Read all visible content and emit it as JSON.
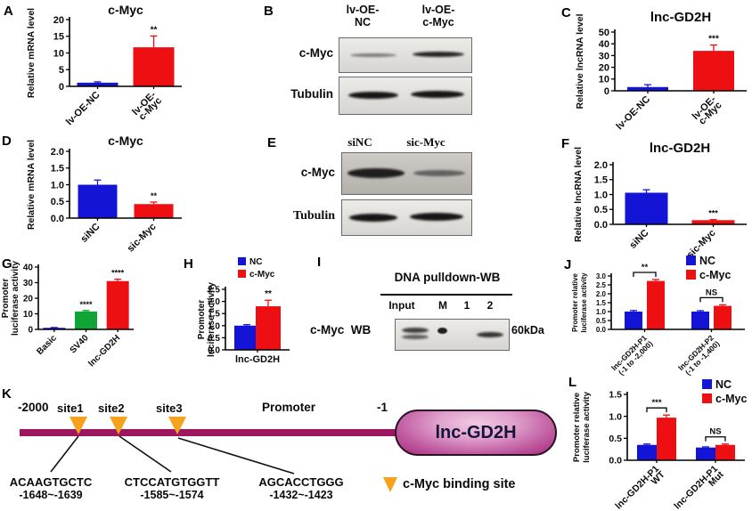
{
  "panel_labels": {
    "A": "A",
    "B": "B",
    "C": "C",
    "D": "D",
    "E": "E",
    "F": "F",
    "G": "G",
    "H": "H",
    "I": "I",
    "J": "J",
    "K": "K",
    "L": "L"
  },
  "colors": {
    "blue": "#1414d6",
    "red": "#ee0f12",
    "green": "#10a335",
    "magenta": "#9c175f",
    "orange": "#f6a21c"
  },
  "chart_data": [
    {
      "id": "A",
      "type": "bar",
      "title": "c-Myc",
      "ylabel": [
        "Relative mRNA level"
      ],
      "ylim": [
        0,
        20
      ],
      "yticks": [
        "0",
        "5",
        "10",
        "15",
        "20"
      ],
      "categories": [
        [
          "lv-OE-NC"
        ],
        [
          "lv-OE-",
          "c-Myc"
        ]
      ],
      "series": [
        {
          "colors": [
            "blue",
            "red"
          ],
          "values": [
            1.1,
            11.7
          ],
          "errors": [
            0.25,
            3.4
          ]
        }
      ],
      "sig": [
        {
          "cat": 1,
          "series": 0,
          "label": "**"
        }
      ]
    },
    {
      "id": "C",
      "type": "bar",
      "title": "lnc-GD2H",
      "ylabel": [
        "Relative lncRNA level"
      ],
      "ylim": [
        0,
        50
      ],
      "yticks": [
        "0",
        "10",
        "20",
        "30",
        "40",
        "50"
      ],
      "categories": [
        [
          "lv-OE-NC"
        ],
        [
          "lv-OE-",
          "c-Myc"
        ]
      ],
      "series": [
        {
          "colors": [
            "blue",
            "red"
          ],
          "values": [
            3.2,
            34
          ],
          "errors": [
            2,
            5
          ]
        }
      ],
      "sig": [
        {
          "cat": 1,
          "series": 0,
          "label": "***"
        }
      ]
    },
    {
      "id": "D",
      "type": "bar",
      "title": "c-Myc",
      "ylabel": [
        "Relative mRNA level"
      ],
      "ylim": [
        0,
        2
      ],
      "yticks": [
        "0.0",
        "0.5",
        "1.0",
        "1.5",
        "2.0"
      ],
      "categories": [
        [
          "siNC"
        ],
        [
          "sic-Myc"
        ]
      ],
      "series": [
        {
          "colors": [
            "blue",
            "red"
          ],
          "values": [
            1.0,
            0.42
          ],
          "errors": [
            0.14,
            0.06
          ]
        }
      ],
      "sig": [
        {
          "cat": 1,
          "series": 0,
          "label": "**"
        }
      ]
    },
    {
      "id": "F",
      "type": "bar",
      "title": "lnc-GD2H",
      "ylabel": [
        "Relative lncRNA level"
      ],
      "ylim": [
        0,
        2
      ],
      "yticks": [
        "0.0",
        "0.5",
        "1.0",
        "1.5",
        "2.0"
      ],
      "categories": [
        [
          "siNC"
        ],
        [
          "sic-Myc"
        ]
      ],
      "series": [
        {
          "colors": [
            "blue",
            "red"
          ],
          "values": [
            1.06,
            0.14
          ],
          "errors": [
            0.1,
            0.02
          ]
        }
      ],
      "sig": [
        {
          "cat": 1,
          "series": 0,
          "label": "***"
        }
      ]
    },
    {
      "id": "G",
      "type": "bar",
      "ylabel": [
        "Promoter",
        "luciferase activity"
      ],
      "ylim": [
        0,
        40
      ],
      "yticks": [
        "0",
        "10",
        "20",
        "30",
        "40"
      ],
      "categories": [
        [
          "Basic"
        ],
        [
          "SV40"
        ],
        [
          "lnc-GD2H"
        ]
      ],
      "series": [
        {
          "colors": [
            "blue",
            "green",
            "red"
          ],
          "values": [
            1,
            11.5,
            31
          ],
          "errors": [
            0.2,
            0.6,
            1.2
          ]
        }
      ],
      "sig": [
        {
          "cat": 1,
          "series": 0,
          "label": "****"
        },
        {
          "cat": 2,
          "series": 0,
          "label": "****"
        }
      ]
    },
    {
      "id": "H",
      "type": "bar",
      "ylabel": [
        "Promoter",
        "luciferase activity"
      ],
      "ylim": [
        0,
        2.5
      ],
      "yticks": [
        "0.0",
        "0.5",
        "1.0",
        "1.5",
        "2.0",
        "2.5"
      ],
      "categories": [
        [
          "lnc-GD2H"
        ]
      ],
      "legend": [
        {
          "label": "NC",
          "color": "blue"
        },
        {
          "label": "c-Myc",
          "color": "red"
        }
      ],
      "series": [
        {
          "name": "NC",
          "color": "blue",
          "values": [
            1.0
          ],
          "errors": [
            0.04
          ]
        },
        {
          "name": "c-Myc",
          "color": "red",
          "values": [
            1.8
          ],
          "errors": [
            0.25
          ]
        }
      ],
      "sig": [
        {
          "cat": 0,
          "series": 1,
          "label": "**"
        }
      ]
    },
    {
      "id": "J",
      "type": "bar",
      "ylabel": [
        "Promoter relative",
        "luciferase activity"
      ],
      "ylim": [
        0,
        3
      ],
      "yticks": [
        "0.0",
        "0.5",
        "1.0",
        "1.5",
        "2.0",
        "2.5",
        "3.0"
      ],
      "categories": [
        [
          "lnc-GD2H-P1",
          "(-1 to -2,000)"
        ],
        [
          "lnc-GD2H-P2",
          "(-1 to -1,400)"
        ]
      ],
      "legend": [
        {
          "label": "NC",
          "color": "blue"
        },
        {
          "label": "c-Myc",
          "color": "red"
        }
      ],
      "series": [
        {
          "name": "NC",
          "color": "blue",
          "values": [
            1.0,
            1.0
          ],
          "errors": [
            0.06,
            0.05
          ]
        },
        {
          "name": "c-Myc",
          "color": "red",
          "values": [
            2.72,
            1.32
          ],
          "errors": [
            0.08,
            0.06
          ]
        }
      ],
      "brackets": [
        {
          "cat": 0,
          "label": "**"
        },
        {
          "cat": 1,
          "label": "NS"
        }
      ]
    },
    {
      "id": "L",
      "type": "bar",
      "ylabel": [
        "Promoter relative",
        "luciferase activity"
      ],
      "ylim": [
        0,
        1.5
      ],
      "yticks": [
        "0.0",
        "0.5",
        "1.0",
        "1.5"
      ],
      "categories": [
        [
          "lnc-GD2H-P1",
          "WT"
        ],
        [
          "lnc-GD2H-P1",
          "Mut"
        ]
      ],
      "legend": [
        {
          "label": "NC",
          "color": "blue"
        },
        {
          "label": "c-Myc",
          "color": "red"
        }
      ],
      "series": [
        {
          "name": "NC",
          "color": "blue",
          "values": [
            0.35,
            0.29
          ],
          "errors": [
            0.02,
            0.015
          ]
        },
        {
          "name": "c-Myc",
          "color": "red",
          "values": [
            0.97,
            0.35
          ],
          "errors": [
            0.06,
            0.02
          ]
        }
      ],
      "brackets": [
        {
          "cat": 0,
          "label": "***"
        },
        {
          "cat": 1,
          "label": "NS"
        }
      ]
    }
  ],
  "wb_b": {
    "lanes": [
      [
        "lv-OE-",
        "NC"
      ],
      [
        "lv-OE-",
        "c-Myc"
      ]
    ],
    "rows": [
      "c-Myc",
      "Tubulin"
    ]
  },
  "wb_e": {
    "lanes": [
      "siNC",
      "sic-Myc"
    ],
    "rows": [
      "c-Myc",
      "Tubulin"
    ]
  },
  "pulldown": {
    "title": "DNA pulldown-WB",
    "lanes": [
      "Input",
      "M",
      "1",
      "2"
    ],
    "row_label": "c-Myc  WB",
    "size_label": "60kDa"
  },
  "promoter_diagram": {
    "pos_left": "-2000",
    "pos_right": "-1",
    "promoter_label": "Promoter",
    "gene_label": "lnc-GD2H",
    "legend_label": "c-Myc binding site",
    "sites": [
      {
        "name": "site1",
        "seq": "ACAAGTGCTC",
        "range": "-1648~-1639"
      },
      {
        "name": "site2",
        "seq": "CTCCATGTGGTT",
        "range": "-1585~-1574"
      },
      {
        "name": "site3",
        "seq": "AGCACCTGGG",
        "range": "-1432~-1423"
      }
    ]
  }
}
